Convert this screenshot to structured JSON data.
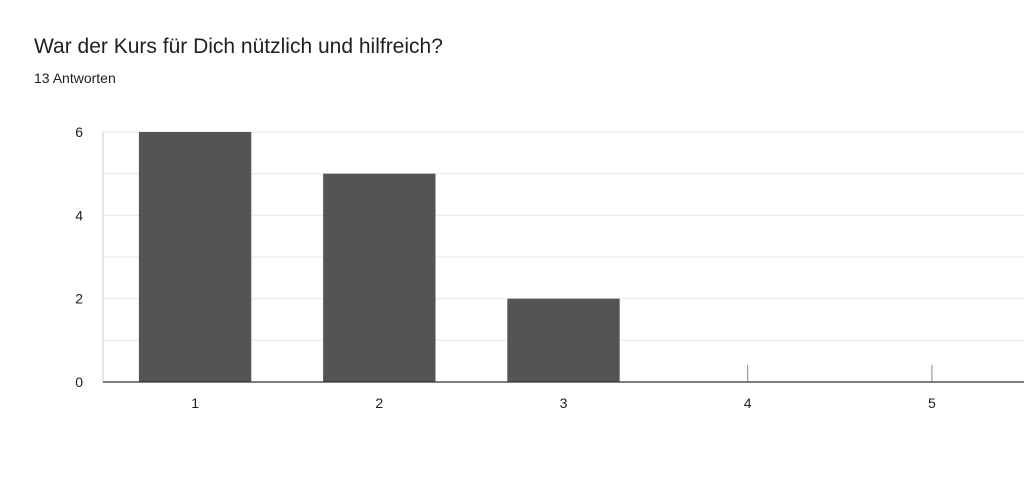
{
  "header": {
    "title": "War der Kurs für Dich nützlich und hilfreich?",
    "responses": "13 Antworten"
  },
  "chart_data": {
    "type": "bar",
    "categories": [
      "1",
      "2",
      "3",
      "4",
      "5"
    ],
    "values": [
      6,
      5,
      2,
      0,
      0
    ],
    "yticks": [
      "0",
      "2",
      "4",
      "6"
    ],
    "ylim": [
      0,
      6
    ],
    "grid": true,
    "legend": "none",
    "bar_color": "#545454",
    "grid_color": "#e8e8e8",
    "axis_color": "#333333"
  }
}
